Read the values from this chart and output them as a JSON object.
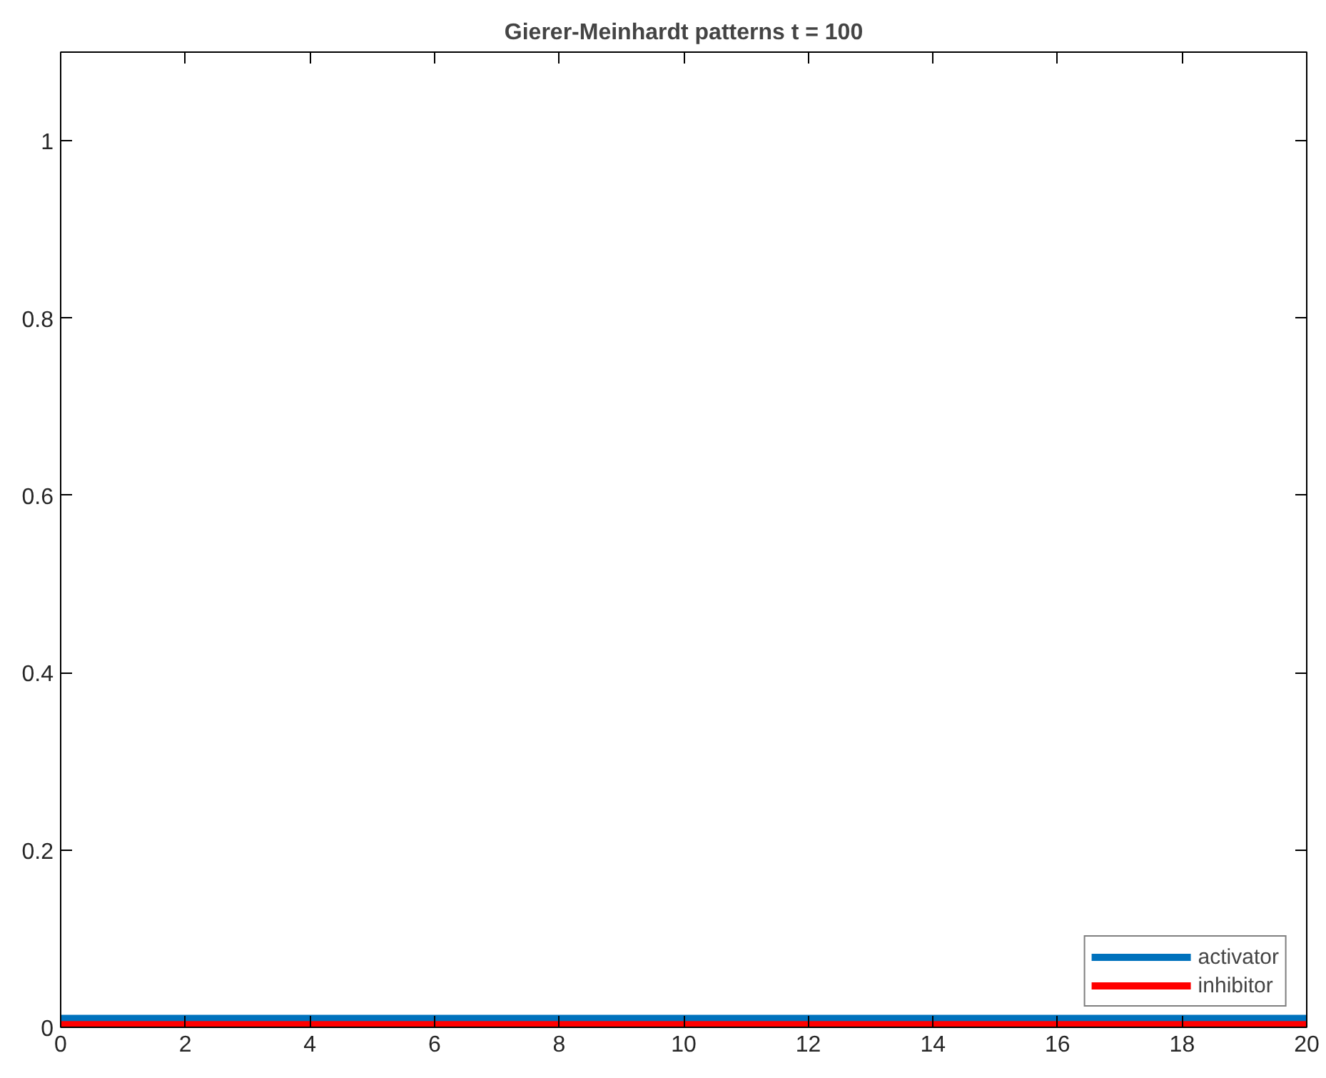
{
  "chart_data": {
    "type": "line",
    "title": "Gierer-Meinhardt patterns t = 100",
    "x": [
      0,
      20
    ],
    "series": [
      {
        "name": "activator",
        "color": "#0072bd",
        "values": [
          0.01,
          0.01
        ]
      },
      {
        "name": "inhibitor",
        "color": "#ff0000",
        "values": [
          0.003,
          0.003
        ]
      }
    ],
    "xlim": [
      0,
      20
    ],
    "ylim": [
      0,
      1.1
    ],
    "xticks": [
      0,
      2,
      4,
      6,
      8,
      10,
      12,
      14,
      16,
      18,
      20
    ],
    "yticks": [
      0,
      0.2,
      0.4,
      0.6,
      0.8,
      1
    ],
    "grid": false,
    "legend": "bottom right",
    "line_style": "solid",
    "marker": "none"
  }
}
